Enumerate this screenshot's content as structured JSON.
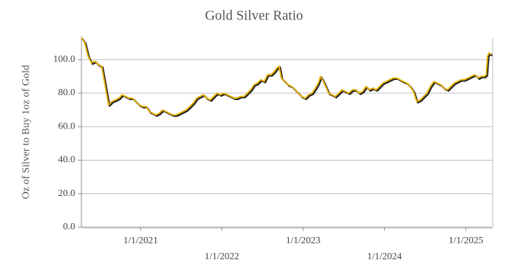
{
  "chart_data": {
    "type": "line",
    "title": "Gold Silver Ratio",
    "y_label": "Oz of Silver to Buy 1oz of Gold",
    "x": [
      "2020-04-10",
      "2020-04-25",
      "2020-05-10",
      "2020-05-25",
      "2020-06-10",
      "2020-06-25",
      "2020-07-10",
      "2020-07-25",
      "2020-08-10",
      "2020-08-25",
      "2020-09-10",
      "2020-09-25",
      "2020-10-10",
      "2020-10-25",
      "2020-11-10",
      "2020-11-25",
      "2020-12-10",
      "2020-12-25",
      "2021-01-10",
      "2021-01-25",
      "2021-02-10",
      "2021-02-25",
      "2021-03-10",
      "2021-03-25",
      "2021-04-10",
      "2021-04-25",
      "2021-05-10",
      "2021-05-25",
      "2021-06-10",
      "2021-06-25",
      "2021-07-10",
      "2021-07-25",
      "2021-08-10",
      "2021-08-25",
      "2021-09-10",
      "2021-09-25",
      "2021-10-10",
      "2021-10-25",
      "2021-11-10",
      "2021-11-25",
      "2021-12-10",
      "2021-12-25",
      "2022-01-10",
      "2022-01-25",
      "2022-02-10",
      "2022-02-25",
      "2022-03-10",
      "2022-03-25",
      "2022-04-10",
      "2022-04-25",
      "2022-05-10",
      "2022-05-25",
      "2022-06-10",
      "2022-06-25",
      "2022-07-10",
      "2022-07-25",
      "2022-08-10",
      "2022-08-25",
      "2022-09-05",
      "2022-09-15",
      "2022-09-25",
      "2022-10-10",
      "2022-10-25",
      "2022-11-10",
      "2022-11-25",
      "2022-12-10",
      "2022-12-25",
      "2023-01-10",
      "2023-01-25",
      "2023-02-10",
      "2023-02-25",
      "2023-03-10",
      "2023-03-20",
      "2023-04-05",
      "2023-04-25",
      "2023-05-10",
      "2023-05-25",
      "2023-06-10",
      "2023-06-25",
      "2023-07-10",
      "2023-07-25",
      "2023-08-10",
      "2023-08-25",
      "2023-09-10",
      "2023-09-25",
      "2023-10-10",
      "2023-10-25",
      "2023-11-10",
      "2023-11-25",
      "2023-12-10",
      "2023-12-25",
      "2024-01-10",
      "2024-01-25",
      "2024-02-10",
      "2024-02-25",
      "2024-03-10",
      "2024-03-25",
      "2024-04-10",
      "2024-04-25",
      "2024-05-10",
      "2024-05-25",
      "2024-06-10",
      "2024-06-25",
      "2024-07-10",
      "2024-07-25",
      "2024-08-10",
      "2024-08-25",
      "2024-09-10",
      "2024-09-25",
      "2024-10-10",
      "2024-10-25",
      "2024-11-10",
      "2024-11-25",
      "2024-12-10",
      "2024-12-25",
      "2025-01-10",
      "2025-01-25",
      "2025-02-10",
      "2025-02-25",
      "2025-03-10",
      "2025-03-25",
      "2025-04-02",
      "2025-04-08",
      "2025-04-15",
      "2025-04-25"
    ],
    "series": [
      {
        "name": "Gold Silver Ratio",
        "color": "#e8b000",
        "values": [
          113,
          110,
          102,
          98,
          99,
          97,
          96,
          85,
          73,
          75,
          76,
          77,
          79,
          78,
          77,
          77,
          75,
          73,
          72,
          72,
          69,
          68,
          67,
          68,
          70,
          69,
          68,
          67,
          67,
          68,
          69,
          70,
          72,
          74,
          77,
          78,
          79,
          77,
          76,
          78,
          80,
          79,
          80,
          79,
          78,
          77,
          77,
          78,
          78,
          80,
          82,
          85,
          86,
          88,
          87,
          91,
          91,
          93,
          95,
          96,
          89,
          87,
          85,
          84,
          82,
          80,
          78,
          77,
          79,
          80,
          83,
          86,
          90,
          86,
          80,
          79,
          78,
          80,
          82,
          81,
          80,
          82,
          82,
          80,
          81,
          84,
          82,
          83,
          82,
          84,
          86,
          87,
          88,
          89,
          89,
          88,
          87,
          86,
          84,
          81,
          75,
          76,
          78,
          80,
          84,
          87,
          86,
          85,
          83,
          82,
          84,
          86,
          87,
          88,
          88,
          89,
          90,
          91,
          89,
          90,
          90,
          91,
          102,
          104,
          103
        ]
      }
    ],
    "xlim": [
      "2020-04-10",
      "2025-04-28"
    ],
    "xticks": [
      {
        "value": "2021-01-01",
        "label": "1/1/2021"
      },
      {
        "value": "2022-01-01",
        "label": "1/1/2022"
      },
      {
        "value": "2023-01-01",
        "label": "1/1/2023"
      },
      {
        "value": "2024-01-01",
        "label": "1/1/2024"
      },
      {
        "value": "2025-01-01",
        "label": "1/1/2025"
      }
    ],
    "ylim": [
      0,
      114
    ],
    "yticks": [
      {
        "value": 0,
        "label": "0.0"
      },
      {
        "value": 20,
        "label": "20.0"
      },
      {
        "value": 40,
        "label": "40.0"
      },
      {
        "value": 60,
        "label": "60.0"
      },
      {
        "value": 80,
        "label": "80.0"
      },
      {
        "value": 100,
        "label": "100.0"
      }
    ],
    "grid": true
  }
}
